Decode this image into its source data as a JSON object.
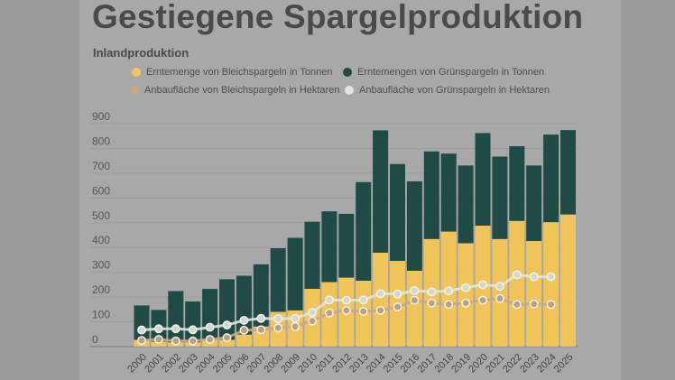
{
  "title": "Gestiegene Spargelproduktion",
  "subtitle": "Inlandproduktion",
  "colors": {
    "bleich_bar": "#f1c459",
    "gruen_bar": "#1f4a45",
    "bleich_line": "#c6a989",
    "gruen_line": "#dde7dd",
    "background": "#a8a8a8"
  },
  "chart_data": {
    "type": "bar",
    "stacked": true,
    "title": "Gestiegene Spargelproduktion",
    "subtitle": "Inlandproduktion",
    "xlabel": "",
    "ylabel": "",
    "ylim": [
      0,
      900
    ],
    "yticks": [
      "0",
      "100",
      "200",
      "300",
      "400",
      "500",
      "600",
      "700",
      "800",
      "900"
    ],
    "grid": true,
    "legend_position": "top",
    "categories": [
      "2000",
      "2001",
      "2002",
      "2003",
      "2004",
      "2005",
      "2006",
      "2007",
      "2008",
      "2009",
      "2010",
      "2011",
      "2012",
      "2013",
      "2014",
      "2015",
      "2016",
      "2017",
      "2018",
      "2019",
      "2020",
      "2021",
      "2022",
      "2023",
      "2024",
      "2025"
    ],
    "series": [
      {
        "name": "Erntemenge von Bleichspargeln in Tonnen",
        "type": "bar",
        "color": "#f1c459",
        "values": [
          27,
          20,
          17,
          17,
          29,
          27,
          48,
          81,
          140,
          146,
          233,
          260,
          278,
          266,
          379,
          346,
          306,
          434,
          464,
          417,
          488,
          434,
          507,
          426,
          502,
          533
        ]
      },
      {
        "name": "Erntemengen von Grünspargeln in Tonnen",
        "type": "bar",
        "color": "#1f4a45",
        "values": [
          139,
          128,
          207,
          165,
          204,
          245,
          238,
          251,
          257,
          293,
          271,
          286,
          258,
          398,
          494,
          391,
          361,
          354,
          315,
          314,
          374,
          333,
          302,
          305,
          354,
          341
        ]
      },
      {
        "name": "Anbaufläche von Bleichspargeln in Hektaren",
        "type": "line",
        "color": "#c6a989",
        "values": [
          25,
          29,
          23,
          23,
          29,
          36,
          66,
          68,
          75,
          81,
          103,
          136,
          146,
          142,
          146,
          160,
          187,
          176,
          170,
          176,
          187,
          194,
          170,
          172,
          170,
          null
        ]
      },
      {
        "name": "Anbaufläche von Grünspargeln in Hektaren",
        "type": "line",
        "color": "#dde7dd",
        "values": [
          67,
          72,
          72,
          68,
          78,
          87,
          106,
          114,
          112,
          114,
          138,
          188,
          187,
          188,
          214,
          212,
          226,
          221,
          225,
          238,
          250,
          243,
          290,
          282,
          282,
          null
        ]
      }
    ]
  }
}
